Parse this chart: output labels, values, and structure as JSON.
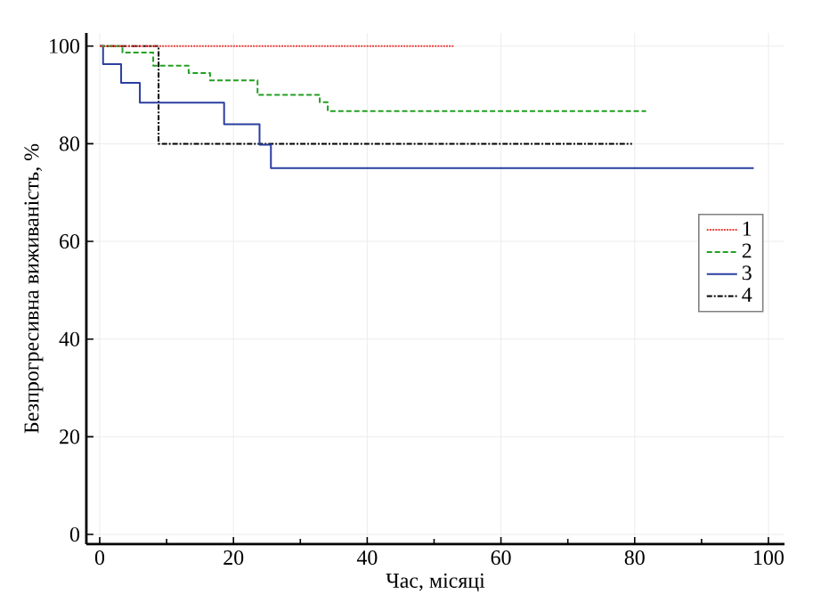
{
  "chart_data": {
    "type": "step",
    "xlabel": "Час,  місяці",
    "ylabel": "Безпрогресивна виживаність, %",
    "xlim": [
      -2,
      102.4
    ],
    "ylim": [
      -2,
      102.7
    ],
    "xticks": [
      0,
      {
        "value": 10,
        "label": null
      },
      20,
      {
        "value": 30,
        "label": null
      },
      40,
      {
        "value": 50,
        "label": null
      },
      60,
      {
        "value": 70,
        "label": null
      },
      80,
      {
        "value": 90,
        "label": null
      },
      100
    ],
    "yticks": [
      0,
      20,
      40,
      60,
      80,
      100
    ],
    "grid": true,
    "legend": "right",
    "series": [
      {
        "name": "1",
        "color": "#e8413c",
        "line_style": "dotted",
        "x": [
          0,
          53
        ],
        "values": [
          100,
          100
        ]
      },
      {
        "name": "2",
        "color": "#22a022",
        "line_style": "dashed",
        "x": [
          0,
          3.4,
          8,
          13.3,
          16.5,
          23.6,
          32.9,
          34.1,
          81.7
        ],
        "values": [
          100,
          98.7,
          96,
          94.5,
          93,
          90,
          88.5,
          86.7,
          86.7
        ]
      },
      {
        "name": "3",
        "color": "#2a3fa0",
        "line_style": "solid",
        "x": [
          0,
          0.5,
          3.2,
          6,
          18.6,
          23.9,
          25.6,
          97.8
        ],
        "values": [
          100,
          96.3,
          92.5,
          88.4,
          84,
          79.8,
          75,
          75
        ]
      },
      {
        "name": "4",
        "color": "#000000",
        "line_style": "dashdot",
        "x": [
          0,
          8.8,
          79.6
        ],
        "values": [
          100,
          80,
          80
        ]
      }
    ]
  }
}
